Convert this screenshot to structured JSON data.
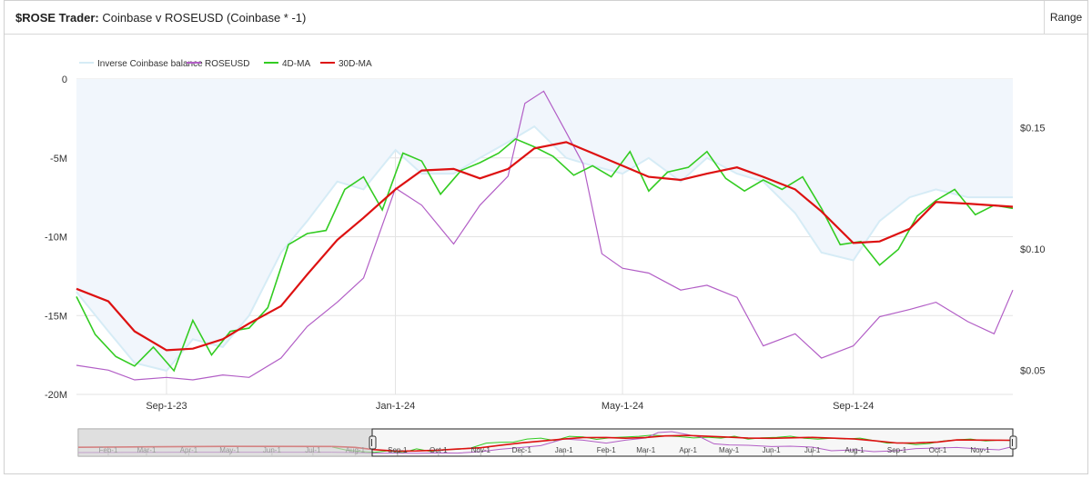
{
  "header": {
    "title_bold": "$ROSE Trader:",
    "title_rest": "Coinbase v ROSEUSD (Coinbase * -1)",
    "range_label": "Range"
  },
  "colors": {
    "balance": "#d6ecf6",
    "balance_fill": "#f1f6fc",
    "roseusd": "#b25ec6",
    "ma4": "#33cc22",
    "ma30": "#dd1111",
    "grid": "#e3e3e3",
    "navigator_mask": "#cfcfcf"
  },
  "chart_data": {
    "type": "line",
    "legend": [
      "Inverse Coinbase balance",
      "ROSEUSD",
      "4D-MA",
      "30D-MA"
    ],
    "legend_position": "top-left",
    "x_ticks": [
      "Sep-1-23",
      "Jan-1-24",
      "May-1-24",
      "Sep-1-24"
    ],
    "x_range": [
      "2023-07-15",
      "2024-11-25"
    ],
    "y_left": {
      "ticks": [
        "0",
        "-5M",
        "-10M",
        "-15M",
        "-20M"
      ],
      "range": [
        -20,
        0
      ],
      "unit": "M"
    },
    "y_right": {
      "ticks": [
        "$0.15",
        "$0.10",
        "$0.05"
      ],
      "range": [
        0.04,
        0.17
      ]
    },
    "series": [
      {
        "name": "30D-MA",
        "axis": "left",
        "x": [
          "2023-07-15",
          "2023-08-01",
          "2023-08-15",
          "2023-09-01",
          "2023-09-15",
          "2023-10-01",
          "2023-10-15",
          "2023-11-01",
          "2023-11-15",
          "2023-12-01",
          "2023-12-15",
          "2024-01-01",
          "2024-01-15",
          "2024-02-01",
          "2024-02-15",
          "2024-03-01",
          "2024-03-15",
          "2024-04-01",
          "2024-04-15",
          "2024-05-01",
          "2024-05-15",
          "2024-06-01",
          "2024-06-15",
          "2024-07-01",
          "2024-07-15",
          "2024-08-01",
          "2024-08-15",
          "2024-09-01",
          "2024-09-15",
          "2024-10-01",
          "2024-10-15",
          "2024-11-01",
          "2024-11-25"
        ],
        "values": [
          -13.3,
          -14.1,
          -16.0,
          -17.2,
          -17.1,
          -16.5,
          -15.5,
          -14.4,
          -12.4,
          -10.2,
          -8.8,
          -7.0,
          -5.8,
          -5.7,
          -6.3,
          -5.7,
          -4.4,
          -4.0,
          -4.7,
          -5.5,
          -6.2,
          -6.4,
          -6.0,
          -5.6,
          -6.2,
          -7.0,
          -8.4,
          -10.4,
          -10.3,
          -9.5,
          -7.8,
          -7.9,
          -8.1
        ]
      },
      {
        "name": "4D-MA",
        "axis": "left",
        "x": [
          "2023-07-15",
          "2023-07-25",
          "2023-08-05",
          "2023-08-15",
          "2023-08-25",
          "2023-09-05",
          "2023-09-15",
          "2023-09-25",
          "2023-10-05",
          "2023-10-15",
          "2023-10-25",
          "2023-11-05",
          "2023-11-15",
          "2023-11-25",
          "2023-12-05",
          "2023-12-15",
          "2023-12-25",
          "2024-01-05",
          "2024-01-15",
          "2024-01-25",
          "2024-02-05",
          "2024-02-15",
          "2024-02-25",
          "2024-03-05",
          "2024-03-15",
          "2024-03-25",
          "2024-04-05",
          "2024-04-15",
          "2024-04-25",
          "2024-05-05",
          "2024-05-15",
          "2024-05-25",
          "2024-06-05",
          "2024-06-15",
          "2024-06-25",
          "2024-07-05",
          "2024-07-15",
          "2024-07-25",
          "2024-08-05",
          "2024-08-15",
          "2024-08-25",
          "2024-09-05",
          "2024-09-15",
          "2024-09-25",
          "2024-10-05",
          "2024-10-15",
          "2024-10-25",
          "2024-11-05",
          "2024-11-15",
          "2024-11-25"
        ],
        "values": [
          -13.8,
          -16.2,
          -17.6,
          -18.2,
          -17.0,
          -18.5,
          -15.3,
          -17.5,
          -16.0,
          -15.8,
          -14.5,
          -10.5,
          -9.8,
          -9.6,
          -7.0,
          -6.2,
          -8.3,
          -4.7,
          -5.2,
          -7.3,
          -5.8,
          -5.3,
          -4.7,
          -3.8,
          -4.3,
          -4.9,
          -6.1,
          -5.5,
          -6.2,
          -4.6,
          -7.1,
          -5.9,
          -5.6,
          -4.6,
          -6.3,
          -7.1,
          -6.4,
          -7.0,
          -6.2,
          -8.2,
          -10.5,
          -10.3,
          -11.8,
          -10.8,
          -8.7,
          -7.7,
          -7.0,
          -8.6,
          -8.0,
          -8.2
        ]
      },
      {
        "name": "ROSEUSD",
        "axis": "right",
        "x": [
          "2023-07-15",
          "2023-08-01",
          "2023-08-15",
          "2023-09-01",
          "2023-09-15",
          "2023-10-01",
          "2023-10-15",
          "2023-11-01",
          "2023-11-15",
          "2023-12-01",
          "2023-12-15",
          "2024-01-01",
          "2024-01-15",
          "2024-02-01",
          "2024-02-15",
          "2024-03-01",
          "2024-03-10",
          "2024-03-20",
          "2024-04-01",
          "2024-04-10",
          "2024-04-20",
          "2024-05-01",
          "2024-05-15",
          "2024-06-01",
          "2024-06-15",
          "2024-07-01",
          "2024-07-15",
          "2024-08-01",
          "2024-08-15",
          "2024-09-01",
          "2024-09-15",
          "2024-10-01",
          "2024-10-15",
          "2024-11-01",
          "2024-11-15",
          "2024-11-25"
        ],
        "values": [
          0.052,
          0.05,
          0.046,
          0.047,
          0.046,
          0.048,
          0.047,
          0.055,
          0.068,
          0.078,
          0.088,
          0.125,
          0.118,
          0.102,
          0.118,
          0.13,
          0.16,
          0.165,
          0.148,
          0.135,
          0.098,
          0.092,
          0.09,
          0.083,
          0.085,
          0.08,
          0.06,
          0.065,
          0.055,
          0.06,
          0.072,
          0.075,
          0.078,
          0.07,
          0.065,
          0.083
        ]
      },
      {
        "name": "Inverse Coinbase balance",
        "axis": "left",
        "x": [
          "2023-07-15",
          "2023-08-01",
          "2023-08-15",
          "2023-09-01",
          "2023-09-15",
          "2023-10-01",
          "2023-10-15",
          "2023-11-01",
          "2023-11-15",
          "2023-12-01",
          "2023-12-15",
          "2024-01-01",
          "2024-01-15",
          "2024-02-01",
          "2024-02-15",
          "2024-03-01",
          "2024-03-15",
          "2024-04-01",
          "2024-04-15",
          "2024-05-01",
          "2024-05-15",
          "2024-06-01",
          "2024-06-15",
          "2024-07-01",
          "2024-07-15",
          "2024-08-01",
          "2024-08-15",
          "2024-09-01",
          "2024-09-15",
          "2024-10-01",
          "2024-10-15",
          "2024-11-01",
          "2024-11-25"
        ],
        "values": [
          -13.5,
          -16.0,
          -18.0,
          -18.5,
          -16.5,
          -17.0,
          -15.0,
          -11.0,
          -9.0,
          -6.5,
          -7.0,
          -4.5,
          -6.0,
          -6.0,
          -5.0,
          -4.0,
          -3.0,
          -5.0,
          -5.5,
          -6.0,
          -5.0,
          -6.5,
          -5.0,
          -6.0,
          -6.5,
          -8.5,
          -11.0,
          -11.5,
          -9.0,
          -7.5,
          -7.0,
          -7.5,
          -7.5
        ]
      }
    ],
    "navigator_ticks": [
      "Feb-1",
      "Mar-1",
      "Apr-1",
      "May-1",
      "Jun-1",
      "Jul-1",
      "Aug-1",
      "Sep-1",
      "Oct-1",
      "Nov-1",
      "Dec-1",
      "Jan-1",
      "Feb-1",
      "Mar-1",
      "Apr-1",
      "May-1",
      "Jun-1",
      "Jul-1",
      "Aug-1",
      "Sep-1",
      "Oct-1",
      "Nov-1"
    ]
  }
}
